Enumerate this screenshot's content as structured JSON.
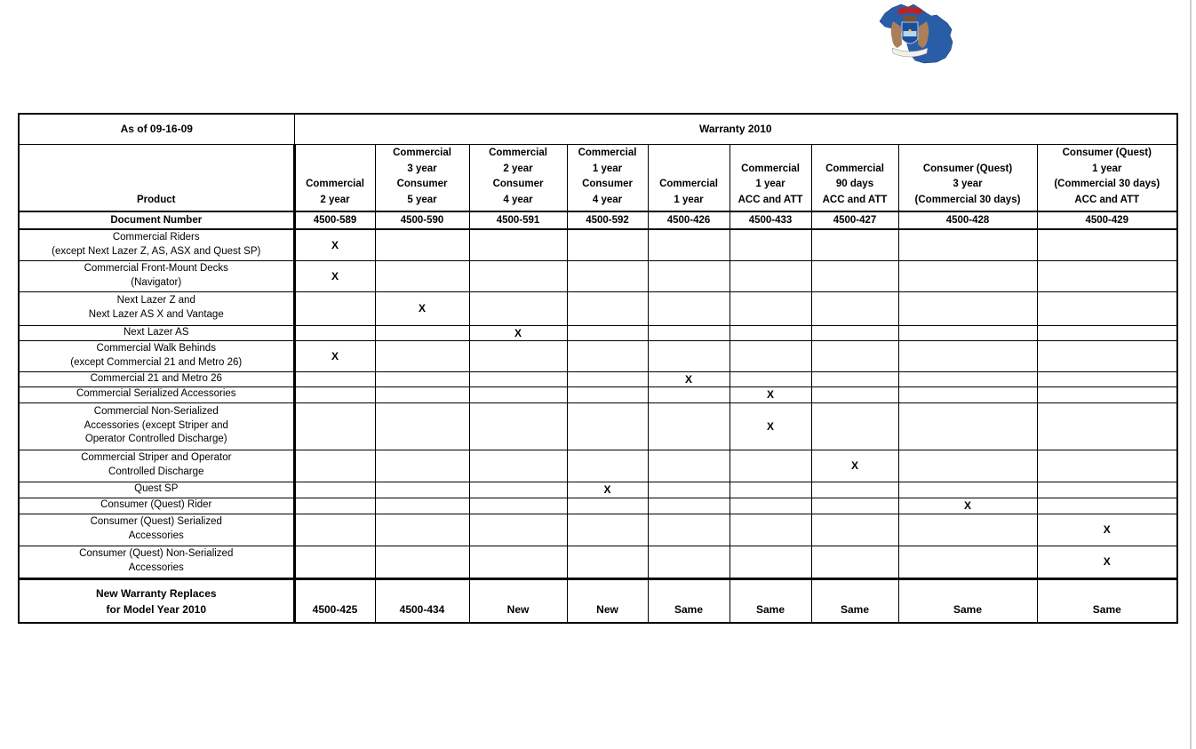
{
  "page": {
    "background": "#ffffff"
  },
  "logo": {
    "name": "michigan-state-logo",
    "state_blue": "#2a5da8",
    "seal_red": "#bb2222",
    "seal_tan": "#a9805a",
    "seal_shield_blue": "#1a4f9e",
    "seal_ribbon": "#f2f0e8"
  },
  "table": {
    "as_of": "As of 09-16-09",
    "title": "Warranty 2010",
    "product_header": "Product",
    "document_number_label": "Document Number",
    "columns": [
      {
        "label": "Commercial\n2 year",
        "doc": "4500-589"
      },
      {
        "label": "Commercial\n3 year\nConsumer\n5 year",
        "doc": "4500-590"
      },
      {
        "label": "Commercial\n2 year\nConsumer\n4 year",
        "doc": "4500-591"
      },
      {
        "label": "Commercial\n1 year\nConsumer\n4 year",
        "doc": "4500-592"
      },
      {
        "label": "Commercial\n1 year",
        "doc": "4500-426"
      },
      {
        "label": "Commercial\n1 year\nACC and ATT",
        "doc": "4500-433"
      },
      {
        "label": "Commercial\n90 days\nACC and ATT",
        "doc": "4500-427"
      },
      {
        "label": "Consumer (Quest)\n3 year\n(Commercial 30 days)",
        "doc": "4500-428"
      },
      {
        "label": "Consumer (Quest)\n1 year\n(Commercial 30 days)\nACC and ATT",
        "doc": "4500-429"
      }
    ],
    "rows": [
      {
        "product": "Commercial Riders\n(except Next Lazer Z, AS, ASX and Quest SP)",
        "marks": [
          "X",
          "",
          "",
          "",
          "",
          "",
          "",
          "",
          ""
        ]
      },
      {
        "product": "Commercial Front-Mount Decks\n(Navigator)",
        "marks": [
          "X",
          "",
          "",
          "",
          "",
          "",
          "",
          "",
          ""
        ]
      },
      {
        "product": "Next Lazer Z and\nNext Lazer AS X and Vantage",
        "marks": [
          "",
          "X",
          "",
          "",
          "",
          "",
          "",
          "",
          ""
        ]
      },
      {
        "product": "Next Lazer AS",
        "marks": [
          "",
          "",
          "X",
          "",
          "",
          "",
          "",
          "",
          ""
        ]
      },
      {
        "product": "Commercial Walk Behinds\n(except Commercial 21 and Metro 26)",
        "marks": [
          "X",
          "",
          "",
          "",
          "",
          "",
          "",
          "",
          ""
        ]
      },
      {
        "product": "Commercial 21 and Metro 26",
        "marks": [
          "",
          "",
          "",
          "",
          "X",
          "",
          "",
          "",
          ""
        ]
      },
      {
        "product": "Commercial Serialized Accessories",
        "marks": [
          "",
          "",
          "",
          "",
          "",
          "X",
          "",
          "",
          ""
        ]
      },
      {
        "product": "Commercial Non-Serialized\nAccessories (except Striper and\nOperator Controlled Discharge)",
        "marks": [
          "",
          "",
          "",
          "",
          "",
          "X",
          "",
          "",
          ""
        ]
      },
      {
        "product": "Commercial Striper and Operator\nControlled Discharge",
        "marks": [
          "",
          "",
          "",
          "",
          "",
          "",
          "X",
          "",
          ""
        ]
      },
      {
        "product": "Quest SP",
        "marks": [
          "",
          "",
          "",
          "X",
          "",
          "",
          "",
          "",
          ""
        ]
      },
      {
        "product": "Consumer (Quest) Rider",
        "marks": [
          "",
          "",
          "",
          "",
          "",
          "",
          "",
          "X",
          ""
        ]
      },
      {
        "product": "Consumer (Quest) Serialized\nAccessories",
        "marks": [
          "",
          "",
          "",
          "",
          "",
          "",
          "",
          "",
          "X"
        ]
      },
      {
        "product": "Consumer (Quest) Non-Serialized\nAccessories",
        "marks": [
          "",
          "",
          "",
          "",
          "",
          "",
          "",
          "",
          "X"
        ]
      }
    ],
    "footer": {
      "label": "New Warranty Replaces\nfor Model Year 2010",
      "values": [
        "4500-425",
        "4500-434",
        "New",
        "New",
        "Same",
        "Same",
        "Same",
        "Same",
        "Same"
      ]
    }
  }
}
